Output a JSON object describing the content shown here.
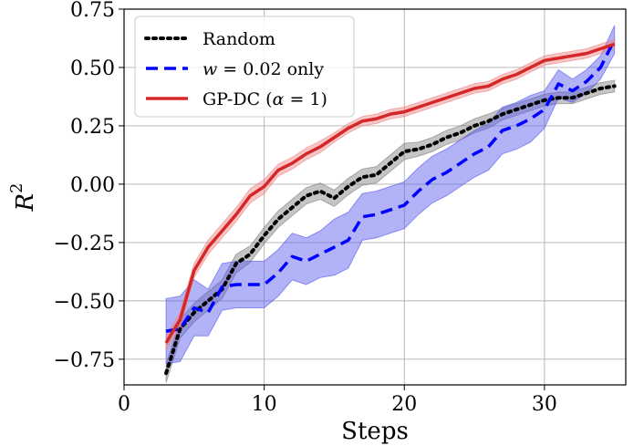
{
  "chart_data": {
    "type": "line",
    "xlabel": "Steps",
    "ylabel": "R",
    "ylabel_superscript": "2",
    "xlim": [
      0,
      35.8
    ],
    "ylim": [
      -0.86,
      0.75
    ],
    "xticks": [
      0,
      10,
      20,
      30
    ],
    "yticks": [
      -0.75,
      -0.5,
      -0.25,
      0.0,
      0.25,
      0.5,
      0.75
    ],
    "ytick_labels": [
      "−0.75",
      "−0.50",
      "−0.25",
      "0.00",
      "0.25",
      "0.50",
      "0.75"
    ],
    "grid": true,
    "legend_position": "top-left",
    "series": [
      {
        "name": "Random",
        "color": "#000000",
        "band_color": "#7f7f7f",
        "dash": "dotted",
        "x": [
          3,
          4,
          5,
          6,
          7,
          8,
          9,
          10,
          11,
          12,
          13,
          14,
          15,
          16,
          17,
          18,
          19,
          20,
          21,
          22,
          23,
          24,
          25,
          26,
          27,
          28,
          29,
          30,
          31,
          32,
          33,
          34,
          35
        ],
        "y": [
          -0.81,
          -0.62,
          -0.55,
          -0.5,
          -0.45,
          -0.34,
          -0.3,
          -0.22,
          -0.15,
          -0.1,
          -0.05,
          -0.03,
          -0.06,
          -0.01,
          0.03,
          0.04,
          0.09,
          0.14,
          0.15,
          0.17,
          0.2,
          0.22,
          0.25,
          0.27,
          0.3,
          0.32,
          0.34,
          0.36,
          0.37,
          0.37,
          0.39,
          0.41,
          0.42
        ],
        "band": [
          0.04,
          0.04,
          0.04,
          0.04,
          0.04,
          0.04,
          0.035,
          0.035,
          0.035,
          0.035,
          0.035,
          0.035,
          0.035,
          0.035,
          0.035,
          0.035,
          0.035,
          0.035,
          0.03,
          0.03,
          0.03,
          0.03,
          0.03,
          0.03,
          0.025,
          0.025,
          0.025,
          0.025,
          0.025,
          0.025,
          0.025,
          0.025,
          0.025
        ]
      },
      {
        "name": "w = 0.02 only",
        "name_parts": [
          "w",
          " = 0.02 only"
        ],
        "color": "#0000ff",
        "band_color": "#5555ee",
        "dash": "dashed",
        "x": [
          3,
          4,
          5,
          6,
          7,
          8,
          9,
          10,
          11,
          12,
          13,
          14,
          15,
          16,
          17,
          18,
          19,
          20,
          21,
          22,
          23,
          24,
          25,
          26,
          27,
          28,
          29,
          30,
          31,
          32,
          33,
          34,
          35
        ],
        "y": [
          -0.63,
          -0.62,
          -0.53,
          -0.55,
          -0.44,
          -0.43,
          -0.43,
          -0.43,
          -0.38,
          -0.31,
          -0.33,
          -0.3,
          -0.27,
          -0.24,
          -0.14,
          -0.13,
          -0.11,
          -0.09,
          -0.03,
          0.02,
          0.05,
          0.09,
          0.13,
          0.16,
          0.23,
          0.25,
          0.28,
          0.32,
          0.43,
          0.4,
          0.44,
          0.5,
          0.62
        ],
        "band": [
          0.14,
          0.14,
          0.12,
          0.1,
          0.1,
          0.1,
          0.1,
          0.1,
          0.1,
          0.1,
          0.1,
          0.1,
          0.12,
          0.12,
          0.1,
          0.1,
          0.1,
          0.1,
          0.1,
          0.1,
          0.1,
          0.1,
          0.1,
          0.1,
          0.1,
          0.1,
          0.1,
          0.08,
          0.06,
          0.05,
          0.05,
          0.05,
          0.06
        ]
      },
      {
        "name": "GP-DC (α = 1)",
        "name_parts": [
          "GP-DC (",
          "α",
          " = 1)"
        ],
        "color": "#d62728",
        "band_color": "#f08080",
        "dash": "solid",
        "x": [
          3,
          4,
          5,
          6,
          7,
          8,
          9,
          10,
          11,
          12,
          13,
          14,
          15,
          16,
          17,
          18,
          19,
          20,
          21,
          22,
          23,
          24,
          25,
          26,
          27,
          28,
          29,
          30,
          31,
          32,
          33,
          34,
          35
        ],
        "y": [
          -0.68,
          -0.58,
          -0.37,
          -0.27,
          -0.2,
          -0.13,
          -0.05,
          -0.01,
          0.06,
          0.09,
          0.13,
          0.16,
          0.2,
          0.24,
          0.27,
          0.28,
          0.3,
          0.31,
          0.33,
          0.35,
          0.37,
          0.39,
          0.41,
          0.42,
          0.45,
          0.47,
          0.5,
          0.53,
          0.54,
          0.55,
          0.56,
          0.58,
          0.6
        ],
        "band": [
          0.03,
          0.03,
          0.03,
          0.03,
          0.03,
          0.03,
          0.03,
          0.03,
          0.025,
          0.025,
          0.025,
          0.025,
          0.02,
          0.02,
          0.02,
          0.02,
          0.02,
          0.02,
          0.02,
          0.02,
          0.02,
          0.02,
          0.02,
          0.02,
          0.02,
          0.02,
          0.02,
          0.02,
          0.02,
          0.02,
          0.02,
          0.02,
          0.02
        ]
      }
    ]
  }
}
